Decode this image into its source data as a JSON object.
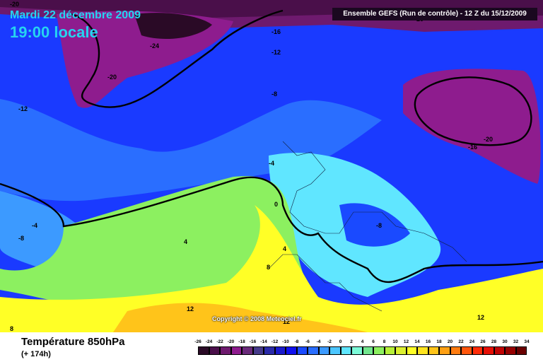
{
  "header": {
    "date": "Mardi 22 décembre 2009",
    "time": "19:00 locale",
    "model": "Ensemble GEFS (Run de contrôle) - 12 Z du 15/12/2009"
  },
  "copyright": "Copyright © 2008 Meteociel.fr",
  "footer": {
    "title": "Température 850hPa",
    "lead": "(+ 174h)"
  },
  "legend": {
    "labels": [
      "-26",
      "-24",
      "-22",
      "-20",
      "-18",
      "-16",
      "-14",
      "-12",
      "-10",
      "-8",
      "-6",
      "-4",
      "-2",
      "0",
      "2",
      "4",
      "6",
      "8",
      "10",
      "12",
      "14",
      "16",
      "18",
      "20",
      "22",
      "24",
      "26",
      "28",
      "30",
      "32",
      "34"
    ],
    "colors": [
      "#2a0a26",
      "#4a0f4a",
      "#6e1a6e",
      "#8e1c8e",
      "#6a2a7a",
      "#463a8a",
      "#2a2aa8",
      "#1a1acc",
      "#1010ee",
      "#1a4aff",
      "#2a6eff",
      "#3c9aff",
      "#4cc6ff",
      "#60e6ff",
      "#7cfad8",
      "#72e68e",
      "#8cf060",
      "#b6f038",
      "#dcf030",
      "#ffff26",
      "#ffe41e",
      "#ffc41a",
      "#ffa014",
      "#ff7c10",
      "#ff560c",
      "#ff2c08",
      "#e61006",
      "#c00404",
      "#960000",
      "#6a0000"
    ]
  },
  "contour_labels": [
    {
      "text": "-20"
    },
    {
      "text": "-24"
    },
    {
      "text": "-20"
    },
    {
      "text": "-16"
    },
    {
      "text": "-12"
    },
    {
      "text": "-12"
    },
    {
      "text": "-8"
    },
    {
      "text": "-20"
    },
    {
      "text": "-20"
    },
    {
      "text": "-16"
    },
    {
      "text": "-4"
    },
    {
      "text": "0"
    },
    {
      "text": "-4"
    },
    {
      "text": "-8"
    },
    {
      "text": "4"
    },
    {
      "text": "4"
    },
    {
      "text": "8"
    },
    {
      "text": "-8"
    },
    {
      "text": "12"
    },
    {
      "text": "12"
    },
    {
      "text": "12"
    },
    {
      "text": "8"
    }
  ]
}
